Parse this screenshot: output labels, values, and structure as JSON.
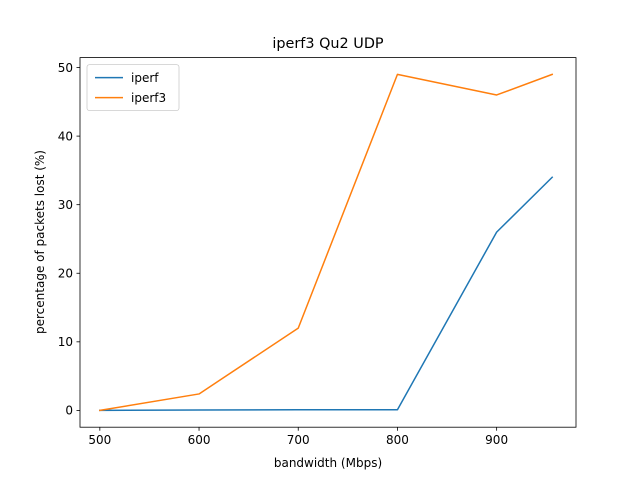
{
  "chart_data": {
    "type": "line",
    "title": "iperf3 Qu2 UDP",
    "xlabel": "bandwidth (Mbps)",
    "ylabel": "percentage of packets lost (%)",
    "xlim": [
      480,
      980
    ],
    "ylim": [
      -2.45,
      51.45
    ],
    "xticks": [
      500,
      600,
      700,
      800,
      900
    ],
    "yticks": [
      0,
      10,
      20,
      30,
      40,
      50
    ],
    "grid": false,
    "legend_position": "top-left",
    "series": [
      {
        "name": "iperf",
        "color": "#1f77b4",
        "x": [
          500,
          600,
          700,
          800,
          900,
          956
        ],
        "y": [
          0,
          0.05,
          0.1,
          0.1,
          26,
          34
        ]
      },
      {
        "name": "iperf3",
        "color": "#ff7f0e",
        "x": [
          500,
          600,
          700,
          800,
          900,
          956
        ],
        "y": [
          0,
          2.4,
          12,
          49,
          46,
          49
        ]
      }
    ]
  }
}
